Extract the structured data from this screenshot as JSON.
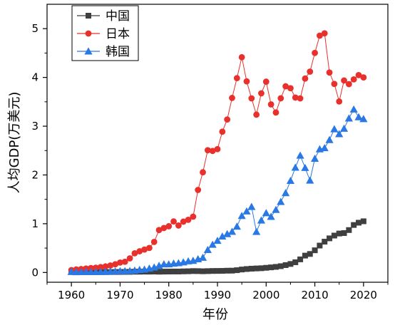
{
  "chart_data": {
    "type": "line",
    "xlabel": "年份",
    "ylabel": "人均GDP(万美元)",
    "xlim": [
      1955,
      2025
    ],
    "ylim": [
      -0.2,
      5.5
    ],
    "xticks": [
      1960,
      1970,
      1980,
      1990,
      2000,
      2010,
      2020
    ],
    "yticks": [
      0,
      1,
      2,
      3,
      4,
      5
    ],
    "grid": false,
    "legend_position": "top-left",
    "x": [
      1960,
      1961,
      1962,
      1963,
      1964,
      1965,
      1966,
      1967,
      1968,
      1969,
      1970,
      1971,
      1972,
      1973,
      1974,
      1975,
      1976,
      1977,
      1978,
      1979,
      1980,
      1981,
      1982,
      1983,
      1984,
      1985,
      1986,
      1987,
      1988,
      1989,
      1990,
      1991,
      1992,
      1993,
      1994,
      1995,
      1996,
      1997,
      1998,
      1999,
      2000,
      2001,
      2002,
      2003,
      2004,
      2005,
      2006,
      2007,
      2008,
      2009,
      2010,
      2011,
      2012,
      2013,
      2014,
      2015,
      2016,
      2017,
      2018,
      2019,
      2020
    ],
    "series": [
      {
        "name": "中国",
        "color": "#3f3f3f",
        "marker": "square",
        "values": [
          0.009,
          0.008,
          0.007,
          0.007,
          0.008,
          0.01,
          0.01,
          0.009,
          0.009,
          0.01,
          0.011,
          0.012,
          0.013,
          0.016,
          0.016,
          0.018,
          0.017,
          0.019,
          0.016,
          0.018,
          0.019,
          0.02,
          0.02,
          0.023,
          0.025,
          0.029,
          0.028,
          0.025,
          0.028,
          0.031,
          0.032,
          0.033,
          0.037,
          0.038,
          0.047,
          0.061,
          0.071,
          0.078,
          0.083,
          0.087,
          0.096,
          0.105,
          0.115,
          0.129,
          0.151,
          0.175,
          0.21,
          0.269,
          0.346,
          0.38,
          0.455,
          0.552,
          0.632,
          0.7,
          0.757,
          0.799,
          0.808,
          0.87,
          0.974,
          1.021,
          1.05
        ]
      },
      {
        "name": "日本",
        "color": "#e8302c",
        "marker": "circle",
        "values": [
          0.048,
          0.062,
          0.07,
          0.081,
          0.09,
          0.098,
          0.11,
          0.124,
          0.143,
          0.168,
          0.204,
          0.22,
          0.29,
          0.394,
          0.435,
          0.47,
          0.503,
          0.627,
          0.87,
          0.912,
          0.948,
          1.047,
          0.963,
          1.043,
          1.081,
          1.145,
          1.693,
          2.055,
          2.507,
          2.492,
          2.529,
          2.888,
          3.138,
          3.579,
          3.986,
          4.414,
          3.919,
          3.571,
          3.237,
          3.674,
          3.913,
          3.447,
          3.281,
          3.572,
          3.818,
          3.779,
          3.587,
          3.57,
          3.977,
          4.119,
          4.502,
          4.857,
          4.904,
          4.1,
          3.867,
          3.507,
          3.937,
          3.862,
          3.96,
          4.048,
          4.0
        ]
      },
      {
        "name": "韩国",
        "color": "#2a78e4",
        "marker": "triangle",
        "values": [
          0.016,
          0.009,
          0.011,
          0.014,
          0.011,
          0.011,
          0.013,
          0.016,
          0.019,
          0.024,
          0.028,
          0.03,
          0.032,
          0.041,
          0.056,
          0.062,
          0.083,
          0.105,
          0.14,
          0.171,
          0.17,
          0.186,
          0.194,
          0.211,
          0.232,
          0.242,
          0.275,
          0.305,
          0.464,
          0.572,
          0.652,
          0.74,
          0.79,
          0.838,
          0.944,
          1.162,
          1.255,
          1.348,
          0.835,
          1.07,
          1.219,
          1.145,
          1.286,
          1.45,
          1.631,
          1.882,
          2.153,
          2.399,
          2.147,
          1.888,
          2.336,
          2.529,
          2.553,
          2.72,
          2.94,
          2.84,
          2.951,
          3.161,
          3.345,
          3.187,
          3.149
        ]
      }
    ]
  }
}
